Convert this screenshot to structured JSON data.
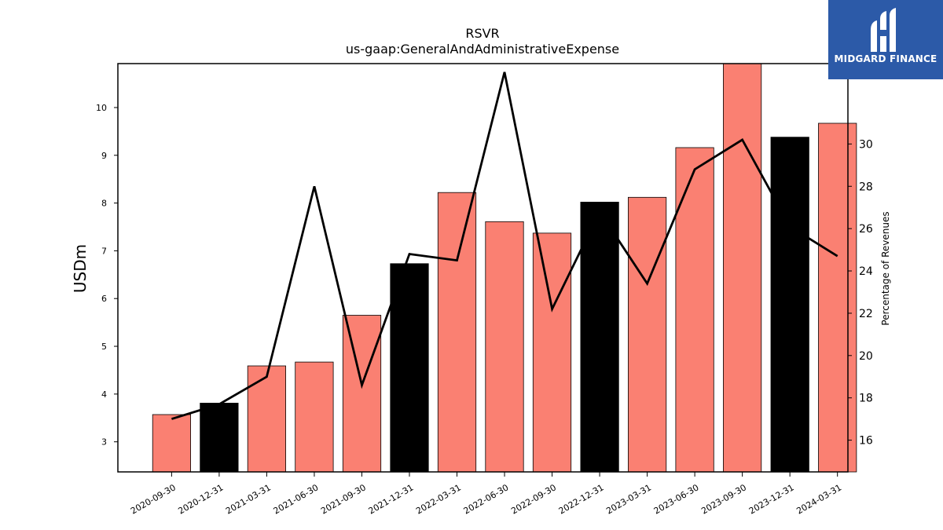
{
  "chart_data": {
    "type": "bar",
    "title": "RSVR",
    "subtitle": "us-gaap:GeneralAndAdministrativeExpense",
    "ylabel": "USDm",
    "y2label": "Percentage of Revenues",
    "categories": [
      "2020-09-30",
      "2020-12-31",
      "2021-03-31",
      "2021-06-30",
      "2021-09-30",
      "2021-12-31",
      "2022-03-31",
      "2022-06-30",
      "2022-09-30",
      "2022-12-31",
      "2023-03-31",
      "2023-06-30",
      "2023-09-30",
      "2023-12-31",
      "2024-03-31"
    ],
    "values": [
      3.57,
      3.81,
      4.59,
      4.67,
      5.65,
      6.73,
      8.22,
      7.61,
      7.37,
      8.02,
      8.12,
      9.16,
      10.92,
      9.38,
      9.67
    ],
    "bar_colors": [
      "#fa8072",
      "#000000",
      "#fa8072",
      "#fa8072",
      "#fa8072",
      "#000000",
      "#fa8072",
      "#fa8072",
      "#fa8072",
      "#000000",
      "#fa8072",
      "#fa8072",
      "#fa8072",
      "#000000",
      "#fa8072"
    ],
    "line_series": {
      "values": [
        17.0,
        17.7,
        19.0,
        28.0,
        18.6,
        24.8,
        24.5,
        33.4,
        22.2,
        26.8,
        23.4,
        28.8,
        30.2,
        26.1,
        24.7
      ],
      "color": "#000000"
    },
    "ylim": [
      2.37,
      10.92
    ],
    "y2lim": [
      14.5,
      33.8
    ],
    "yticks": [
      3,
      4,
      5,
      6,
      7,
      8,
      9,
      10
    ],
    "y2ticks": [
      16,
      18,
      20,
      22,
      24,
      26,
      28,
      30
    ]
  },
  "logo": {
    "text": "MIDGARD FINANCE",
    "bg_color": "#2c5aa8"
  }
}
